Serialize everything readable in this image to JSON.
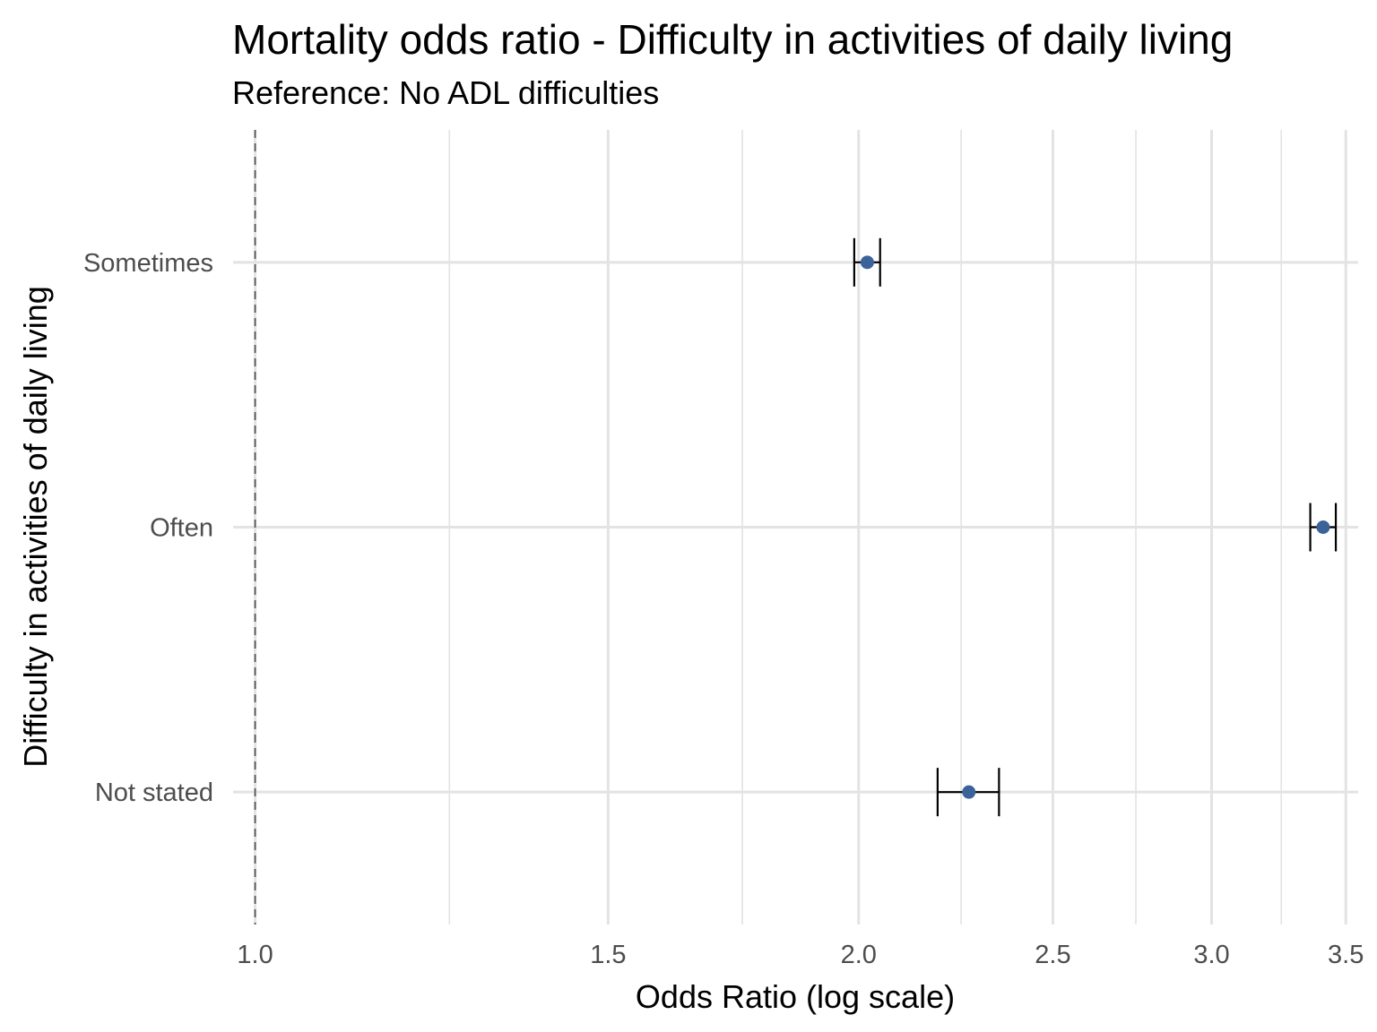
{
  "chart_data": {
    "type": "scatter",
    "subtype": "forest-plot",
    "title": "Mortality odds ratio - Difficulty in activities of daily living",
    "subtitle": "Reference: No ADL difficulties",
    "xlabel": "Odds Ratio (log scale)",
    "ylabel": "Difficulty in activities of daily living",
    "x_scale": "log",
    "xlim": [
      0.975,
      3.55
    ],
    "x_ticks": [
      1.0,
      1.5,
      2.0,
      2.5,
      3.0,
      3.5
    ],
    "x_tick_labels": [
      "1.0",
      "1.5",
      "2.0",
      "2.5",
      "3.0",
      "3.5"
    ],
    "x_minor_ticks": [
      1.25,
      1.75,
      2.25,
      2.75,
      3.25
    ],
    "reference_line": 1.0,
    "categories": [
      "Sometimes",
      "Often",
      "Not stated"
    ],
    "estimates": [
      {
        "category": "Sometimes",
        "or": 2.02,
        "lower": 1.99,
        "upper": 2.05
      },
      {
        "category": "Often",
        "or": 3.41,
        "lower": 3.36,
        "upper": 3.46
      },
      {
        "category": "Not stated",
        "or": 2.27,
        "lower": 2.19,
        "upper": 2.35
      }
    ],
    "point_color": "#3b6399",
    "errorbar_color": "#000000",
    "grid": true,
    "grid_color": "#e3e3e3",
    "reference_line_color": "#555555",
    "legend": "none"
  }
}
